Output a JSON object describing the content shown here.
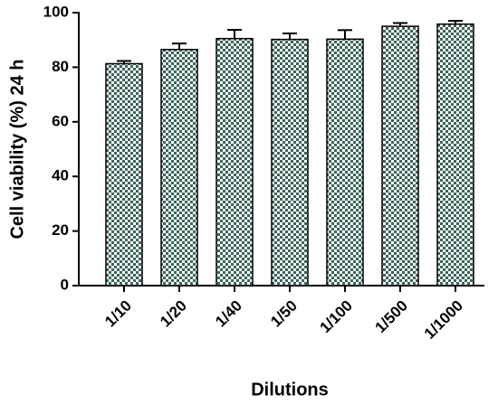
{
  "chart_data": {
    "type": "bar",
    "x_label": "Dilutions",
    "y_label": "Cell viability (%) 24 h",
    "categories": [
      "1/10",
      "1/20",
      "1/40",
      "1/50",
      "1/100",
      "1/500",
      "1/1000"
    ],
    "values": [
      81.3,
      86.5,
      90.5,
      90.2,
      90.3,
      95.0,
      95.8
    ],
    "errors": [
      1.0,
      2.2,
      3.2,
      2.2,
      3.3,
      1.2,
      1.2
    ],
    "color": "#3a6656",
    "ylim": [
      0,
      100
    ],
    "yticks": [
      0,
      20,
      40,
      60,
      80,
      100
    ]
  }
}
